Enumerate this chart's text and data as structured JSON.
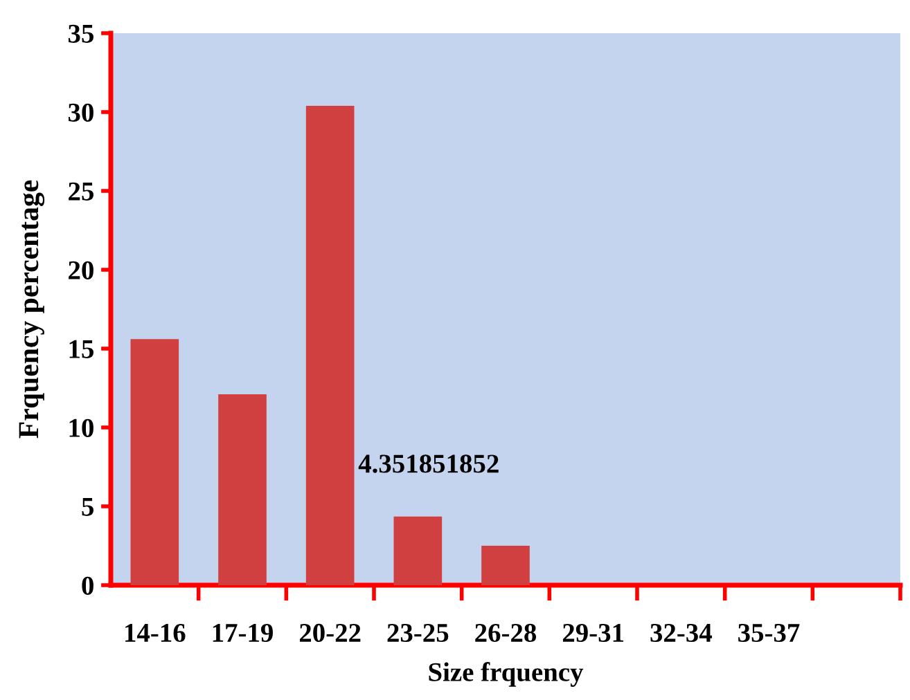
{
  "chart_data": {
    "type": "bar",
    "xlabel": "Size frquency",
    "ylabel": "Frquency percentage",
    "categories": [
      "14-16",
      "17-19",
      "20-22",
      "23-25",
      "26-28",
      "29-31",
      "32-34",
      "35-37",
      null
    ],
    "values": [
      15.6,
      12.1,
      30.4,
      4.351851852,
      2.5,
      0,
      0,
      0,
      null
    ],
    "value_labels": [
      null,
      null,
      null,
      "4.351851852",
      null,
      null,
      null,
      null,
      null
    ],
    "color": "#d04040",
    "ylim": [
      0,
      35
    ],
    "yticks": [
      0,
      5,
      10,
      15,
      20,
      25,
      30,
      35
    ],
    "grid": false,
    "legend": false
  }
}
